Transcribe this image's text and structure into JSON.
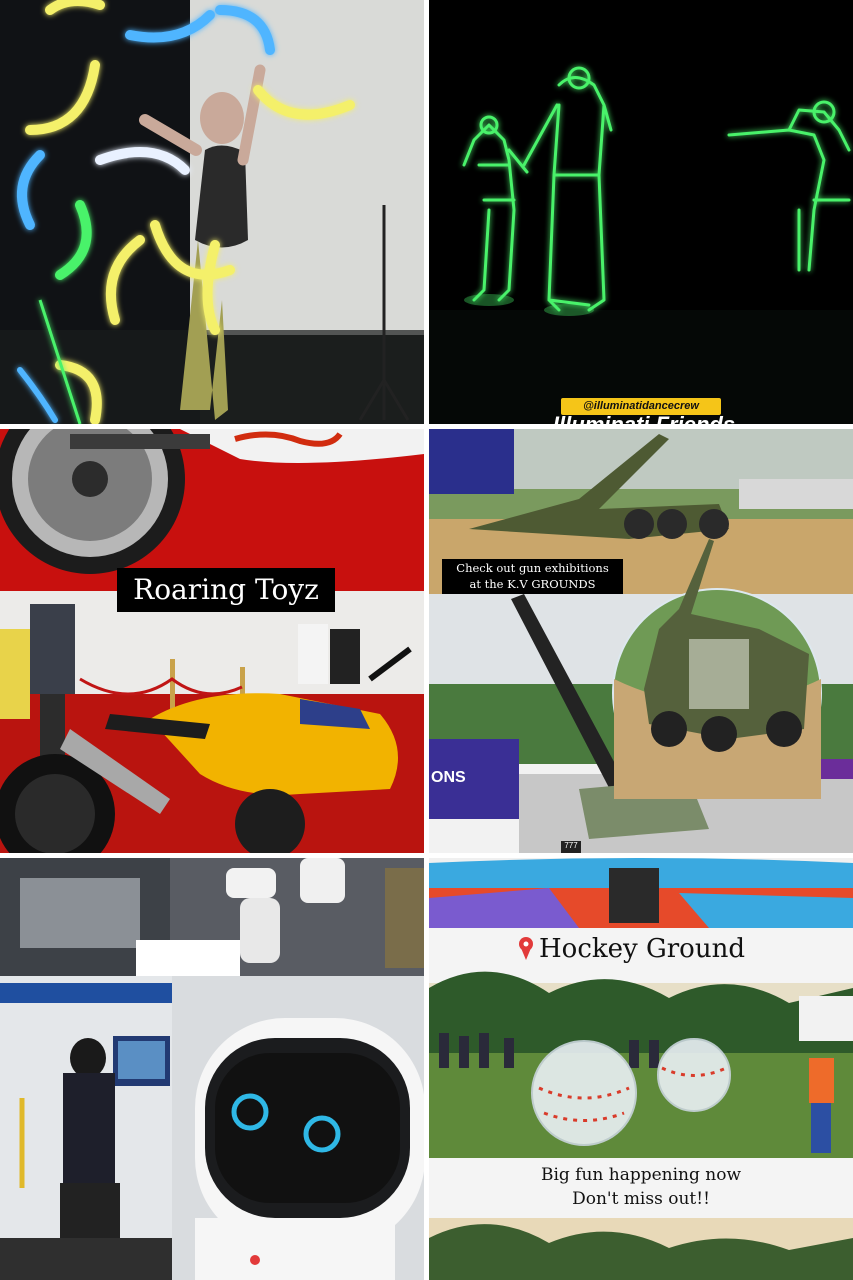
{
  "collage": {
    "tiles": [
      {
        "subject": "led-performer",
        "caption": ""
      },
      {
        "subject": "glow-dance-crew",
        "handle": "@illuminatidancecrew",
        "caption_partial": "Illuminati Friends"
      },
      {
        "subject": "superbikes",
        "caption": "Roaring Toyz"
      },
      {
        "subject": "gun-exhibition",
        "caption_line1": "Check out gun exhibitions",
        "caption_line2": "at the K.V GROUNDS",
        "vehicle_number": "777",
        "banner_text": "ONS"
      },
      {
        "subject": "robots",
        "caption": ""
      },
      {
        "subject": "zorb-balls",
        "pin_icon": "location-pin-icon",
        "title": "Hockey Ground",
        "caption_line1": "Big fun happening now",
        "caption_line2": "Don't miss out!!"
      }
    ]
  },
  "colors": {
    "neon_yellow": "#f4f06a",
    "neon_blue": "#4fb5ff",
    "neon_green": "#49f26b",
    "red_carpet": "#c8100e",
    "bike_yellow": "#f2b300",
    "army_green": "#4e5a33",
    "pin_red": "#e23a3a"
  }
}
